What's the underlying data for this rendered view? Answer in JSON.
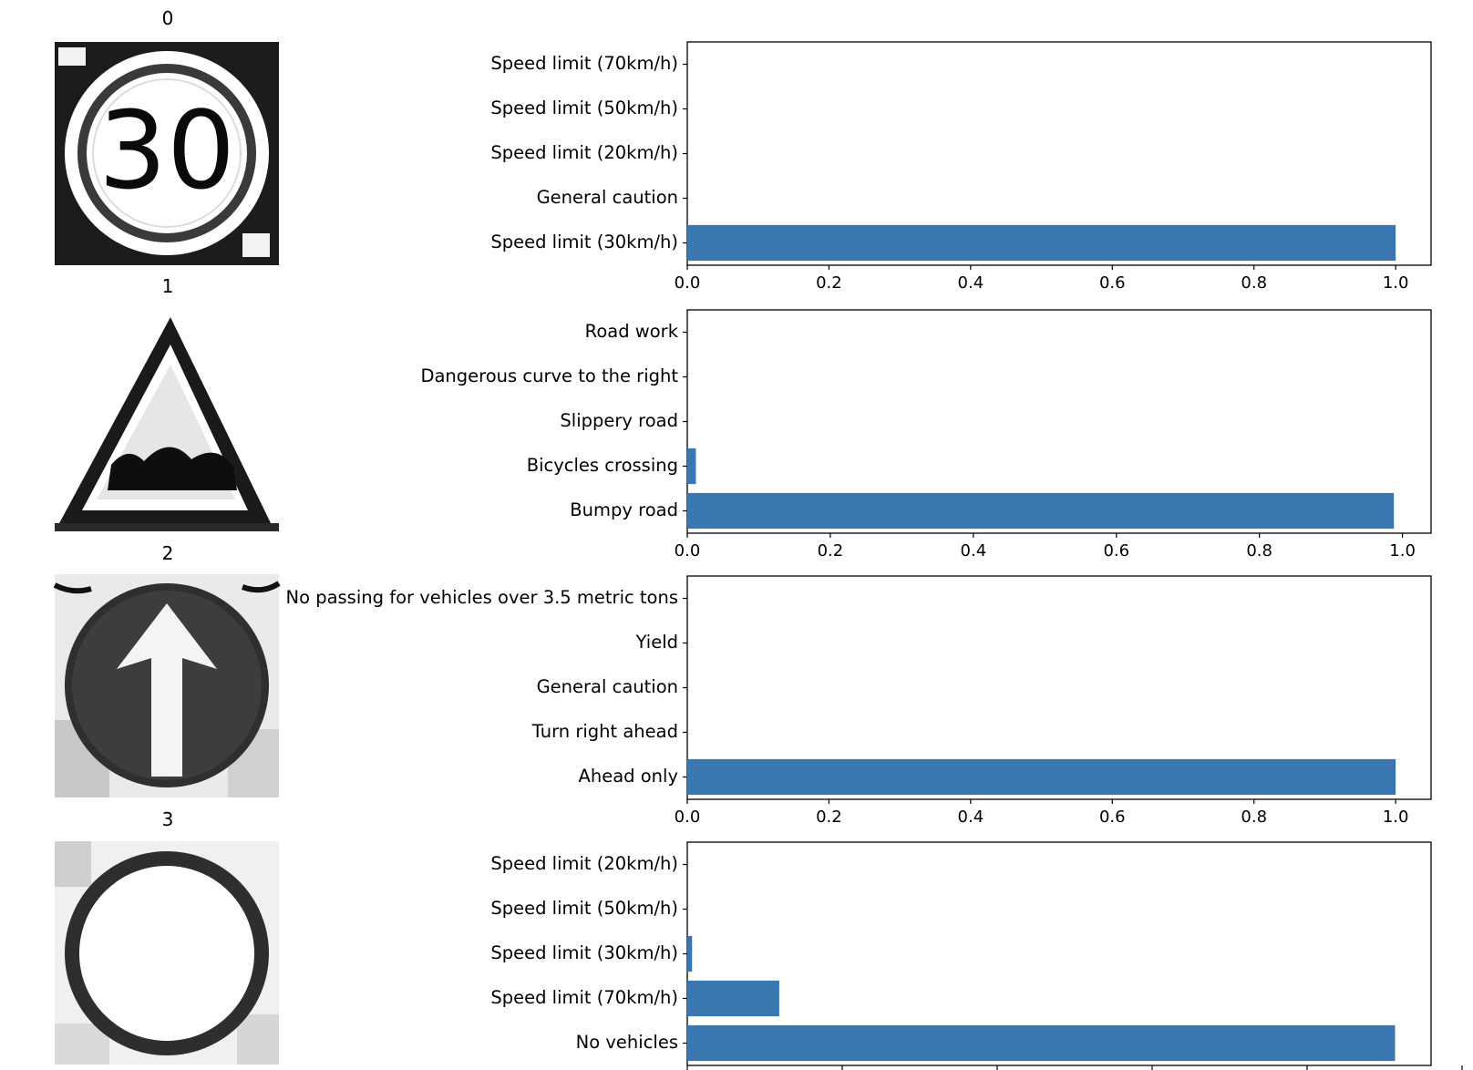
{
  "bar_color": "#3a76af",
  "chart_data": [
    {
      "type": "bar",
      "orientation": "horizontal",
      "title": "0",
      "image": "speed-limit-30-sign",
      "categories": [
        "Speed limit (70km/h)",
        "Speed limit (50km/h)",
        "Speed limit (20km/h)",
        "General caution",
        "Speed limit (30km/h)"
      ],
      "values": [
        0.0,
        0.0,
        0.0,
        0.0,
        1.0
      ],
      "xticks": [
        "0.0",
        "0.2",
        "0.4",
        "0.6",
        "0.8",
        "1.0"
      ],
      "xlim": [
        0,
        1.05
      ],
      "grid": false
    },
    {
      "type": "bar",
      "orientation": "horizontal",
      "title": "1",
      "image": "bumpy-road-sign",
      "categories": [
        "Road work",
        "Dangerous curve to the right",
        "Slippery road",
        "Bicycles crossing",
        "Bumpy road"
      ],
      "values": [
        0.0,
        0.0,
        0.0,
        0.012,
        0.988
      ],
      "xticks": [
        "0.0",
        "0.2",
        "0.4",
        "0.6",
        "0.8",
        "1.0"
      ],
      "xlim": [
        0,
        1.04
      ],
      "grid": false
    },
    {
      "type": "bar",
      "orientation": "horizontal",
      "title": "2",
      "image": "ahead-only-sign",
      "categories": [
        "No passing for vehicles over 3.5 metric tons",
        "Yield",
        "General caution",
        "Turn right ahead",
        "Ahead only"
      ],
      "values": [
        0.0,
        0.0,
        0.0,
        0.0,
        1.0
      ],
      "xticks": [
        "0.0",
        "0.2",
        "0.4",
        "0.6",
        "0.8",
        "1.0"
      ],
      "xlim": [
        0,
        1.05
      ],
      "grid": false
    },
    {
      "type": "bar",
      "orientation": "horizontal",
      "title": "3",
      "image": "no-vehicles-sign",
      "categories": [
        "Speed limit (20km/h)",
        "Speed limit (50km/h)",
        "Speed limit (30km/h)",
        "Speed limit (70km/h)",
        "No vehicles"
      ],
      "values": [
        0.0,
        0.0,
        0.006,
        0.115,
        0.885
      ],
      "xticks": [],
      "xlim": [
        0,
        0.93
      ],
      "grid": false
    }
  ]
}
